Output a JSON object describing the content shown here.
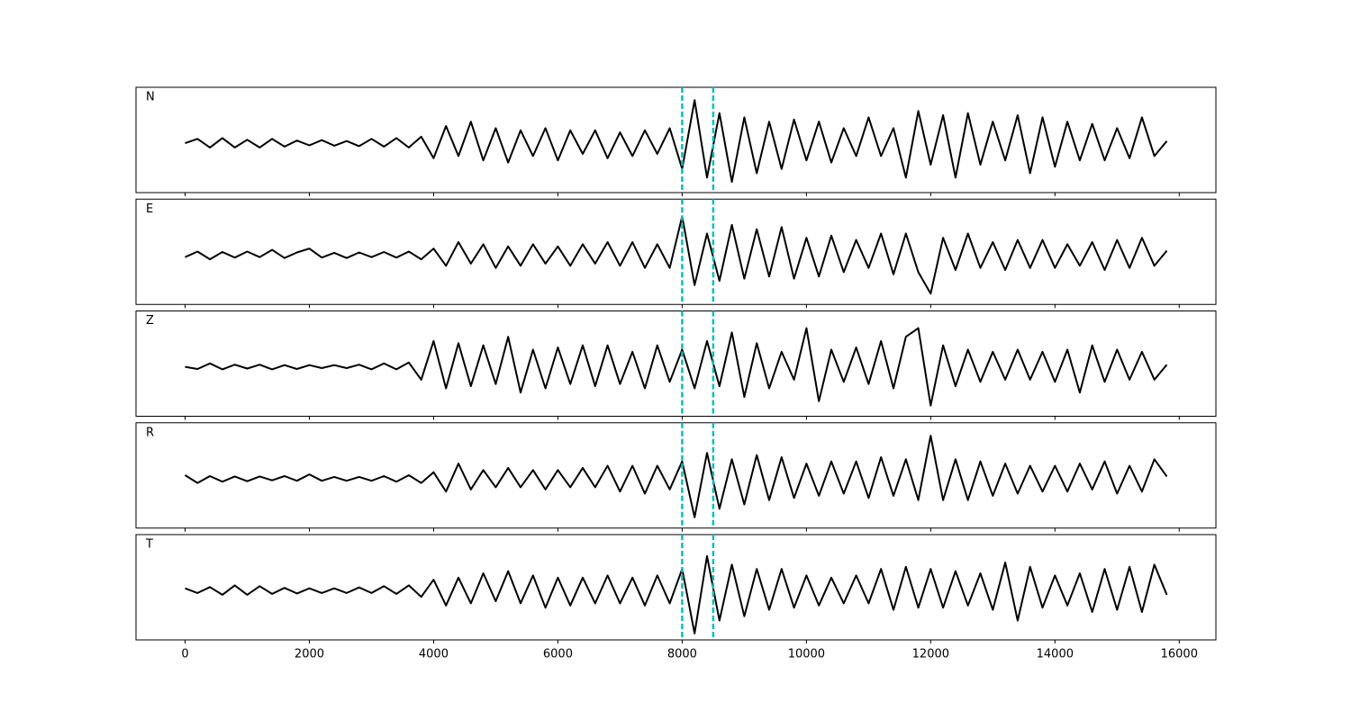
{
  "chart_data": {
    "type": "line",
    "x": [
      0,
      200,
      400,
      600,
      800,
      1000,
      1200,
      1400,
      1600,
      1800,
      2000,
      2200,
      2400,
      2600,
      2800,
      3000,
      3200,
      3400,
      3600,
      3800,
      4000,
      4200,
      4400,
      4600,
      4800,
      5000,
      5200,
      5400,
      5600,
      5800,
      6000,
      6200,
      6400,
      6600,
      6800,
      7000,
      7200,
      7400,
      7600,
      7800,
      8000,
      8200,
      8400,
      8600,
      8800,
      9000,
      9200,
      9400,
      9600,
      9800,
      10000,
      10200,
      10400,
      10600,
      10800,
      11000,
      11200,
      11400,
      11600,
      11800,
      12000,
      12200,
      12400,
      12600,
      12800,
      13000,
      13200,
      13400,
      13600,
      13800,
      14000,
      14200,
      14400,
      14600,
      14800,
      15000,
      15200,
      15400,
      15600,
      15800
    ],
    "series": [
      {
        "name": "N",
        "color": "#000000",
        "values": [
          0,
          0.1,
          -0.1,
          0.12,
          -0.1,
          0.08,
          -0.1,
          0.1,
          -0.08,
          0.06,
          -0.05,
          0.07,
          -0.06,
          0.05,
          -0.07,
          0.1,
          -0.08,
          0.12,
          -0.1,
          0.15,
          -0.35,
          0.4,
          -0.3,
          0.5,
          -0.4,
          0.35,
          -0.45,
          0.3,
          -0.3,
          0.35,
          -0.4,
          0.3,
          -0.25,
          0.3,
          -0.35,
          0.25,
          -0.3,
          0.3,
          -0.25,
          0.35,
          -0.6,
          1.0,
          -0.8,
          0.7,
          -0.9,
          0.6,
          -0.7,
          0.5,
          -0.6,
          0.55,
          -0.4,
          0.5,
          -0.45,
          0.35,
          -0.3,
          0.6,
          -0.3,
          0.35,
          -0.8,
          0.75,
          -0.5,
          0.65,
          -0.8,
          0.7,
          -0.5,
          0.5,
          -0.4,
          0.65,
          -0.7,
          0.6,
          -0.55,
          0.5,
          -0.4,
          0.45,
          -0.4,
          0.35,
          -0.35,
          0.6,
          -0.3,
          0.05
        ]
      },
      {
        "name": "E",
        "color": "#000000",
        "values": [
          -0.05,
          0.08,
          -0.1,
          0.07,
          -0.06,
          0.08,
          -0.05,
          0.12,
          -0.07,
          0.06,
          0.15,
          -0.06,
          0.05,
          -0.07,
          0.06,
          -0.05,
          0.07,
          -0.06,
          0.08,
          -0.1,
          0.15,
          -0.25,
          0.3,
          -0.2,
          0.25,
          -0.3,
          0.2,
          -0.25,
          0.25,
          -0.2,
          0.2,
          -0.25,
          0.25,
          -0.2,
          0.3,
          -0.25,
          0.3,
          -0.3,
          0.25,
          -0.3,
          0.9,
          -0.7,
          0.5,
          -0.6,
          0.7,
          -0.55,
          0.6,
          -0.5,
          0.65,
          -0.55,
          0.4,
          -0.5,
          0.45,
          -0.4,
          0.35,
          -0.3,
          0.5,
          -0.45,
          0.5,
          -0.4,
          -0.9,
          0.4,
          -0.35,
          0.5,
          -0.3,
          0.3,
          -0.35,
          0.35,
          -0.3,
          0.35,
          -0.3,
          0.25,
          -0.25,
          0.3,
          -0.35,
          0.35,
          -0.3,
          0.4,
          -0.25,
          0.1
        ]
      },
      {
        "name": "Z",
        "color": "#000000",
        "values": [
          0,
          -0.05,
          0.08,
          -0.06,
          0.05,
          -0.04,
          0.05,
          -0.06,
          0.04,
          -0.05,
          0.04,
          -0.03,
          0.04,
          -0.03,
          0.05,
          -0.06,
          0.08,
          -0.06,
          0.1,
          -0.3,
          0.6,
          -0.5,
          0.55,
          -0.45,
          0.5,
          -0.4,
          0.7,
          -0.6,
          0.4,
          -0.5,
          0.45,
          -0.4,
          0.5,
          -0.45,
          0.5,
          -0.4,
          0.35,
          -0.5,
          0.5,
          -0.35,
          0.4,
          -0.5,
          0.6,
          -0.45,
          0.8,
          -0.7,
          0.55,
          -0.5,
          0.35,
          -0.3,
          0.9,
          -0.8,
          0.4,
          -0.35,
          0.45,
          -0.4,
          0.6,
          -0.5,
          0.7,
          0.9,
          -0.9,
          0.5,
          -0.45,
          0.4,
          -0.35,
          0.35,
          -0.3,
          0.4,
          -0.3,
          0.35,
          -0.35,
          0.4,
          -0.6,
          0.5,
          -0.35,
          0.4,
          -0.3,
          0.35,
          -0.3,
          0.05
        ]
      },
      {
        "name": "R",
        "color": "#000000",
        "values": [
          0.08,
          -0.1,
          0.06,
          -0.07,
          0.05,
          -0.06,
          0.05,
          -0.04,
          0.06,
          -0.05,
          0.1,
          -0.05,
          0.04,
          -0.05,
          0.04,
          -0.05,
          0.06,
          -0.07,
          0.08,
          -0.1,
          0.15,
          -0.3,
          0.35,
          -0.25,
          0.2,
          -0.2,
          0.25,
          -0.2,
          0.2,
          -0.25,
          0.2,
          -0.2,
          0.25,
          -0.2,
          0.3,
          -0.3,
          0.3,
          -0.35,
          0.3,
          -0.25,
          0.4,
          -0.9,
          0.6,
          -0.7,
          0.45,
          -0.6,
          0.55,
          -0.5,
          0.5,
          -0.45,
          0.35,
          -0.4,
          0.4,
          -0.35,
          0.4,
          -0.45,
          0.5,
          -0.4,
          0.45,
          -0.5,
          1.0,
          -0.5,
          0.45,
          -0.5,
          0.4,
          -0.4,
          0.35,
          -0.35,
          0.3,
          -0.3,
          0.3,
          -0.3,
          0.35,
          -0.25,
          0.4,
          -0.35,
          0.3,
          -0.3,
          0.45,
          0.05
        ]
      },
      {
        "name": "T",
        "color": "#000000",
        "values": [
          0.05,
          -0.06,
          0.08,
          -0.1,
          0.12,
          -0.1,
          0.1,
          -0.08,
          0.06,
          -0.07,
          0.05,
          -0.06,
          0.05,
          -0.06,
          0.07,
          -0.06,
          0.1,
          -0.08,
          0.12,
          -0.15,
          0.25,
          -0.35,
          0.3,
          -0.3,
          0.4,
          -0.25,
          0.45,
          -0.3,
          0.35,
          -0.4,
          0.3,
          -0.35,
          0.3,
          -0.3,
          0.35,
          -0.3,
          0.3,
          -0.35,
          0.35,
          -0.3,
          0.5,
          -1.0,
          0.8,
          -0.7,
          0.6,
          -0.6,
          0.5,
          -0.45,
          0.5,
          -0.4,
          0.35,
          -0.35,
          0.3,
          -0.3,
          0.35,
          -0.3,
          0.5,
          -0.45,
          0.55,
          -0.4,
          0.5,
          -0.4,
          0.45,
          -0.35,
          0.4,
          -0.45,
          0.65,
          -0.7,
          0.55,
          -0.4,
          0.35,
          -0.35,
          0.4,
          -0.5,
          0.5,
          -0.45,
          0.55,
          -0.5,
          0.6,
          -0.1
        ]
      }
    ],
    "vlines": [
      8000,
      8500
    ],
    "vline_color": "#00bfbf",
    "xlim": [
      -790,
      16590
    ],
    "xticks": [
      0,
      2000,
      4000,
      6000,
      8000,
      10000,
      12000,
      14000,
      16000
    ],
    "ylim": [
      -1.15,
      1.3
    ]
  }
}
